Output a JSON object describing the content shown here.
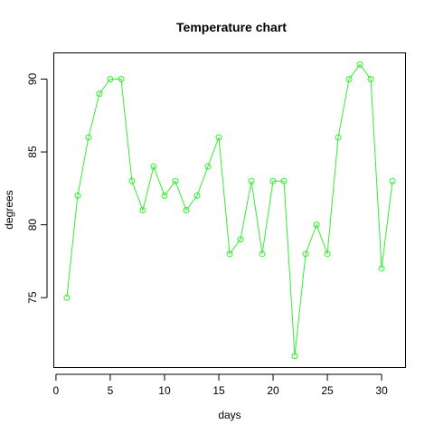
{
  "chart_data": {
    "type": "line",
    "title": "Temperature chart",
    "xlabel": "days",
    "ylabel": "degrees",
    "x": [
      1,
      2,
      3,
      4,
      5,
      6,
      7,
      8,
      9,
      10,
      11,
      12,
      13,
      14,
      15,
      16,
      17,
      18,
      19,
      20,
      21,
      22,
      23,
      24,
      25,
      26,
      27,
      28,
      29,
      30,
      31
    ],
    "series": [
      {
        "color": "#33ee33",
        "values": [
          75,
          82,
          86,
          89,
          90,
          90,
          83,
          81,
          84,
          82,
          83,
          81,
          82,
          84,
          86,
          78,
          79,
          83,
          78,
          83,
          83,
          71,
          78,
          80,
          78,
          86,
          90,
          91,
          90,
          77,
          83
        ]
      }
    ],
    "xlim": [
      -0.2,
      32.2
    ],
    "ylim": [
      70.2,
      91.8
    ],
    "xticks": [
      0,
      5,
      10,
      15,
      20,
      25,
      30
    ],
    "yticks": [
      75,
      80,
      85,
      90
    ],
    "grid": false
  }
}
